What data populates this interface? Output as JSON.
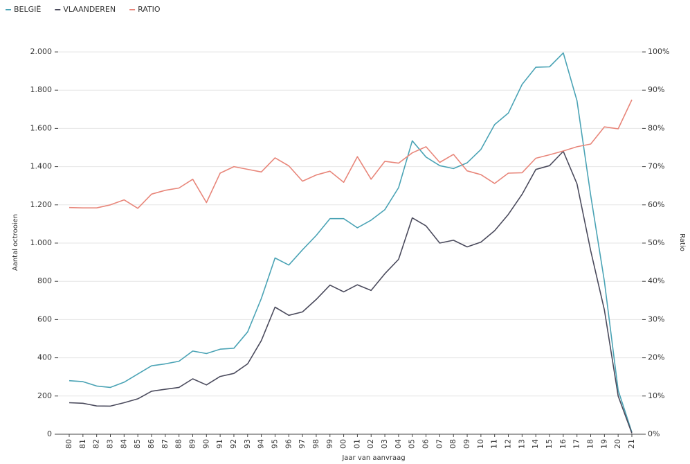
{
  "chart_data": {
    "type": "line",
    "x_label": "Jaar van aanvraag",
    "y_label": "Aantal octrooien",
    "y2_label": "Ratio",
    "categories": [
      "80",
      "81",
      "82",
      "83",
      "84",
      "85",
      "86",
      "87",
      "88",
      "89",
      "90",
      "91",
      "92",
      "93",
      "94",
      "95",
      "96",
      "97",
      "98",
      "99",
      "00",
      "01",
      "02",
      "03",
      "04",
      "05",
      "06",
      "07",
      "08",
      "09",
      "10",
      "11",
      "12",
      "13",
      "14",
      "15",
      "16",
      "17",
      "18",
      "19",
      "20",
      "21"
    ],
    "series": [
      {
        "name": "BELGIË",
        "color": "#4aa3b5",
        "values": [
          280,
          275,
          252,
          245,
          272,
          315,
          358,
          368,
          382,
          435,
          422,
          445,
          450,
          535,
          710,
          922,
          885,
          965,
          1040,
          1128,
          1128,
          1080,
          1120,
          1175,
          1290,
          1535,
          1450,
          1405,
          1390,
          1420,
          1490,
          1620,
          1680,
          1830,
          1920,
          1922,
          1995,
          1745,
          1250,
          800,
          230,
          10
        ]
      },
      {
        "name": "VLAANDEREN",
        "color": "#4a4a5c",
        "values": [
          165,
          162,
          148,
          147,
          165,
          185,
          225,
          235,
          245,
          290,
          258,
          302,
          318,
          368,
          490,
          665,
          622,
          640,
          705,
          780,
          745,
          782,
          752,
          840,
          915,
          1132,
          1090,
          1000,
          1015,
          980,
          1005,
          1065,
          1150,
          1255,
          1385,
          1405,
          1480,
          1310,
          960,
          650,
          200,
          5
        ]
      },
      {
        "name": "RATIO",
        "color": "#e8867a",
        "axis": "y2",
        "values": [
          59.3,
          59.2,
          59.2,
          60,
          61.3,
          59.1,
          62.8,
          63.8,
          64.4,
          66.7,
          60.6,
          68.3,
          70,
          69.3,
          68.6,
          72.3,
          70.2,
          66.2,
          67.8,
          68.8,
          65.9,
          72.6,
          66.7,
          71.4,
          70.9,
          73.6,
          75.2,
          71.1,
          73.2,
          68.9,
          67.9,
          65.6,
          68.3,
          68.4,
          72.2,
          73.1,
          74.1,
          75.2,
          75.9,
          80.4,
          79.9,
          87.5
        ]
      }
    ],
    "ylim": [
      0,
      2000
    ],
    "yticks": [
      {
        "value": 2000,
        "label": "2.000"
      },
      {
        "value": 1800,
        "label": "1.800"
      },
      {
        "value": 1600,
        "label": "1.600"
      },
      {
        "value": 1400,
        "label": "1.400"
      },
      {
        "value": 1200,
        "label": "1.200"
      },
      {
        "value": 1000,
        "label": "1.000"
      },
      800,
      600,
      400,
      200,
      0
    ],
    "y2lim": [
      0,
      100
    ],
    "y2ticks": [
      {
        "value": 100,
        "label": "100%"
      },
      {
        "value": 90,
        "label": "90%"
      },
      {
        "value": 80,
        "label": "80%"
      },
      {
        "value": 70,
        "label": "70%"
      },
      {
        "value": 60,
        "label": "60%"
      },
      {
        "value": 50,
        "label": "50%"
      },
      {
        "value": 40,
        "label": "40%"
      },
      {
        "value": 30,
        "label": "30%"
      },
      {
        "value": 20,
        "label": "20%"
      },
      {
        "value": 10,
        "label": "10%"
      },
      {
        "value": 0,
        "label": "0%"
      }
    ],
    "grid": true,
    "legend": "top-left"
  }
}
